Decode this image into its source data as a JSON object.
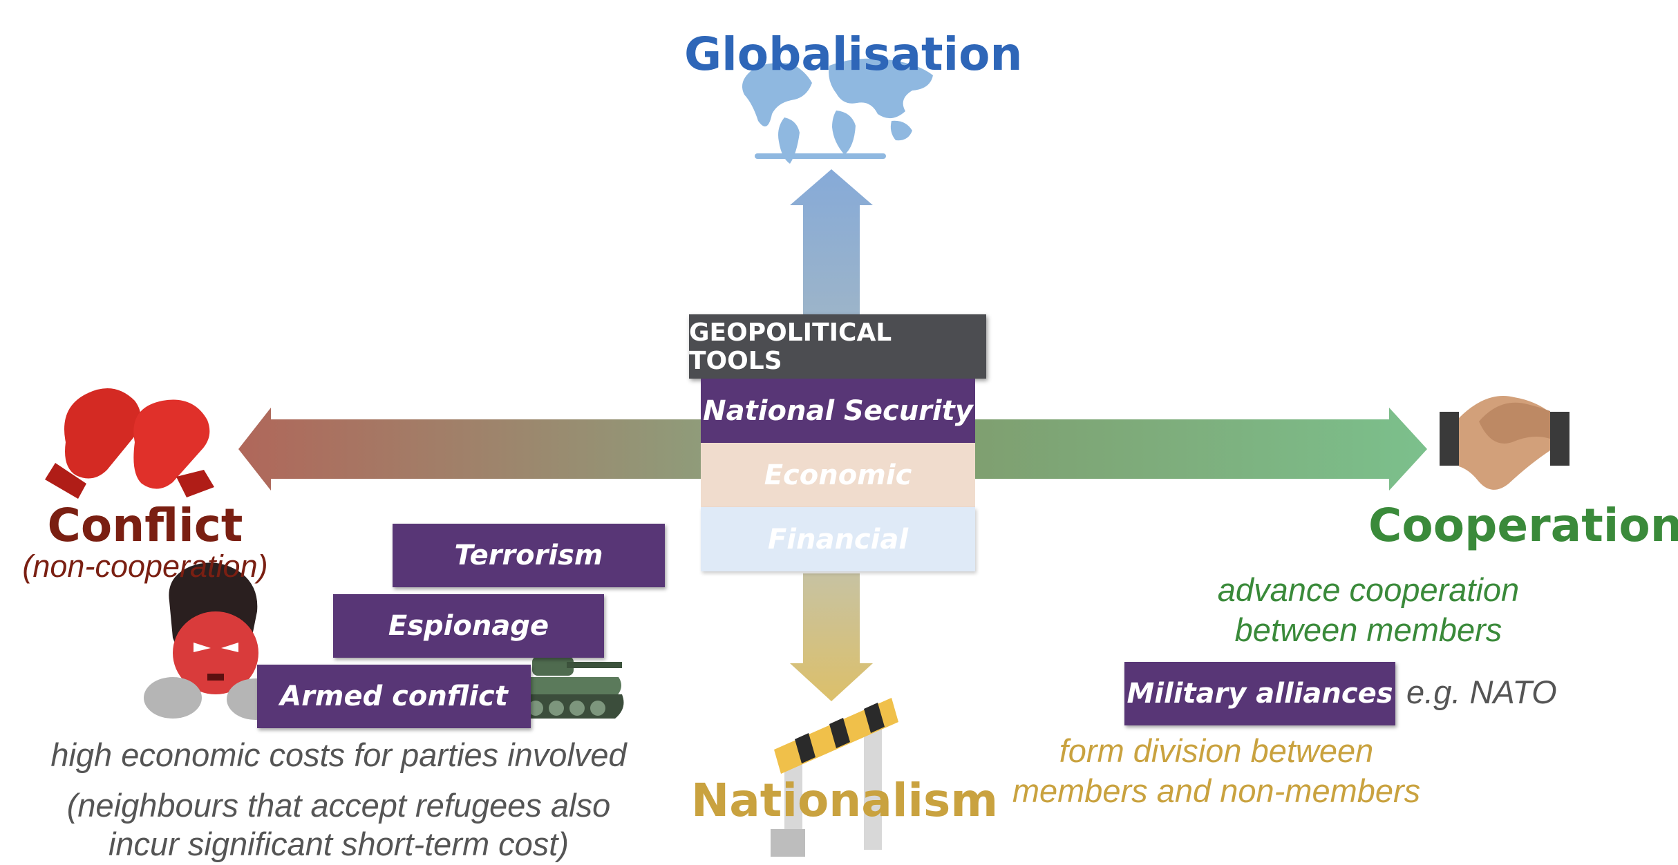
{
  "axes": {
    "top": "Globalisation",
    "bottom": "Nationalism",
    "left": "Conflict",
    "left_sub": "(non-cooperation)",
    "right": "Cooperation"
  },
  "tools": {
    "header": "GEOPOLITICAL TOOLS",
    "items": [
      "National Security",
      "Economic",
      "Financial"
    ]
  },
  "conflict_tools": [
    "Terrorism",
    "Espionage",
    "Armed conflict"
  ],
  "conflict_notes": {
    "line1": "high economic costs for parties involved",
    "line2": "(neighbours that accept refugees also",
    "line3": "incur significant short-term cost)"
  },
  "cooperation": {
    "note_line1": "advance cooperation",
    "note_line2": "between members",
    "tool": "Military alliances",
    "example": "e.g. NATO",
    "division_line1": "form division between",
    "division_line2": "members and non-members"
  },
  "colors": {
    "globalisation": "#2e66b8",
    "nationalism": "#c9a23f",
    "conflict": "#7a1f12",
    "cooperation": "#3a8a3a",
    "tool_purple": "#583676",
    "header_gray": "#4c4d51",
    "economic_bg": "#f0dccd",
    "financial_bg": "#dfeaf7"
  },
  "icons": [
    "world-map-icon",
    "boxing-gloves-icon",
    "handshake-icon",
    "angry-face-icon",
    "tank-icon",
    "road-barrier-icon"
  ]
}
